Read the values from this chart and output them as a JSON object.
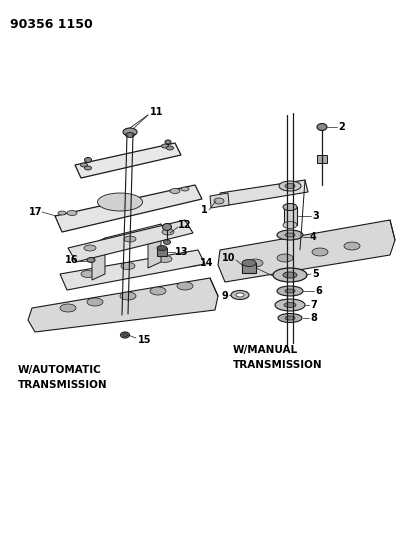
{
  "title": "90356 1150",
  "bg_color": "#ffffff",
  "line_color": "#1a1a1a",
  "text_color": "#000000",
  "label_auto": "W/AUTOMATIC\nTRANSMISSION",
  "label_manual": "W/MANUAL\nTRANSMISSION",
  "fig_width": 3.98,
  "fig_height": 5.33,
  "dpi": 100
}
